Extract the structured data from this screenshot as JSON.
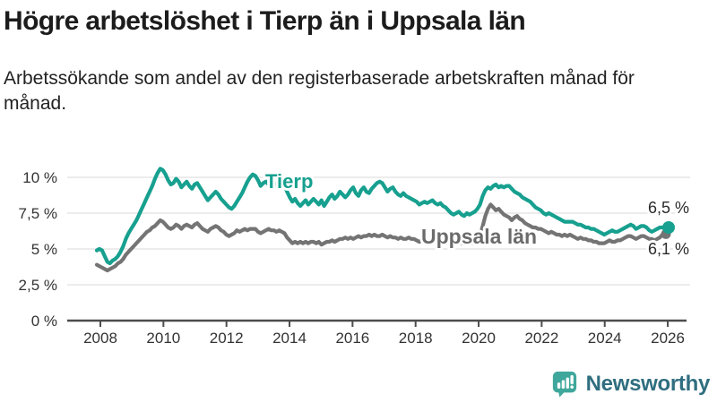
{
  "header": {
    "title": "Högre arbetslöshet i Tierp än i Uppsala län",
    "subtitle": "Arbetssökande som andel av den registerbaserade arbetskraften månad för månad."
  },
  "chart_data": {
    "type": "line",
    "title": "Högre arbetslöshet i Tierp än i Uppsala län",
    "xlabel": "",
    "ylabel": "",
    "x_start_year": 2008,
    "x_interval": "monthly",
    "x_tick_labels": [
      "2008",
      "2010",
      "2012",
      "2014",
      "2016",
      "2018",
      "2020",
      "2022",
      "2024",
      "2026"
    ],
    "y_ticks": [
      0,
      2.5,
      5,
      7.5,
      10
    ],
    "y_tick_labels": [
      "0 %",
      "2,5 %",
      "5 %",
      "7,5 %",
      "10 %"
    ],
    "ylim": [
      0,
      11.3
    ],
    "grid": true,
    "legend_position": "inline-labels",
    "series": [
      {
        "name": "Tierp",
        "color": "#17a08f",
        "end_label": "6,5 %",
        "end_value": 6.5,
        "values": [
          4.9,
          5.0,
          4.9,
          4.5,
          4.1,
          4.0,
          4.2,
          4.3,
          4.5,
          4.8,
          5.2,
          5.7,
          6.1,
          6.4,
          6.7,
          7.0,
          7.4,
          7.8,
          8.2,
          8.6,
          9.0,
          9.4,
          9.9,
          10.3,
          10.6,
          10.5,
          10.2,
          9.8,
          9.5,
          9.6,
          9.9,
          9.7,
          9.3,
          9.5,
          9.7,
          9.4,
          9.2,
          9.5,
          9.6,
          9.3,
          9.0,
          8.7,
          8.4,
          8.6,
          8.8,
          9.0,
          8.8,
          8.5,
          8.3,
          8.1,
          7.9,
          7.8,
          8.0,
          8.3,
          8.6,
          8.9,
          9.3,
          9.7,
          10.0,
          10.2,
          10.1,
          9.8,
          9.4,
          9.6,
          9.7,
          9.5,
          9.3,
          9.6,
          9.5,
          9.7,
          9.6,
          9.4,
          9.0,
          8.6,
          8.3,
          8.5,
          8.2,
          8.0,
          8.2,
          8.4,
          8.1,
          8.3,
          8.5,
          8.3,
          8.1,
          8.4,
          8.0,
          8.3,
          8.6,
          8.8,
          8.5,
          8.7,
          9.0,
          8.8,
          8.6,
          8.8,
          9.1,
          9.3,
          8.9,
          8.7,
          9.1,
          9.3,
          9.0,
          8.9,
          9.2,
          9.4,
          9.6,
          9.7,
          9.6,
          9.3,
          9.0,
          9.2,
          9.3,
          9.0,
          8.8,
          8.7,
          8.9,
          8.7,
          8.6,
          8.5,
          8.4,
          8.3,
          8.1,
          8.2,
          8.3,
          8.2,
          8.3,
          8.4,
          8.2,
          8.1,
          8.2,
          8.0,
          7.9,
          7.7,
          7.5,
          7.4,
          7.5,
          7.6,
          7.4,
          7.3,
          7.5,
          7.4,
          7.5,
          7.6,
          7.8,
          8.1,
          8.7,
          9.1,
          9.3,
          9.2,
          9.4,
          9.5,
          9.3,
          9.4,
          9.3,
          9.4,
          9.4,
          9.2,
          9.0,
          8.9,
          8.8,
          8.6,
          8.5,
          8.4,
          8.3,
          8.1,
          7.9,
          7.8,
          7.7,
          7.5,
          7.4,
          7.5,
          7.4,
          7.3,
          7.2,
          7.1,
          7.0,
          6.9,
          6.9,
          6.9,
          6.9,
          6.8,
          6.7,
          6.7,
          6.6,
          6.5,
          6.5,
          6.4,
          6.4,
          6.3,
          6.2,
          6.1,
          6.0,
          6.1,
          6.2,
          6.3,
          6.2,
          6.2,
          6.3,
          6.4,
          6.5,
          6.6,
          6.7,
          6.6,
          6.4,
          6.5,
          6.6,
          6.6,
          6.5,
          6.3,
          6.2,
          6.3,
          6.4,
          6.5,
          6.5,
          6.4,
          6.5
        ]
      },
      {
        "name": "Uppsala län",
        "color": "#747474",
        "end_label": "6,1 %",
        "end_value": 6.1,
        "values": [
          3.9,
          3.8,
          3.7,
          3.6,
          3.5,
          3.6,
          3.7,
          3.8,
          4.0,
          4.1,
          4.3,
          4.6,
          4.8,
          5.0,
          5.2,
          5.4,
          5.6,
          5.8,
          6.0,
          6.2,
          6.3,
          6.5,
          6.6,
          6.8,
          7.0,
          6.9,
          6.7,
          6.5,
          6.4,
          6.5,
          6.7,
          6.6,
          6.4,
          6.6,
          6.7,
          6.6,
          6.5,
          6.7,
          6.8,
          6.6,
          6.4,
          6.3,
          6.2,
          6.4,
          6.5,
          6.6,
          6.5,
          6.3,
          6.2,
          6.0,
          5.9,
          6.0,
          6.1,
          6.3,
          6.2,
          6.3,
          6.4,
          6.3,
          6.4,
          6.4,
          6.4,
          6.2,
          6.1,
          6.2,
          6.3,
          6.4,
          6.3,
          6.3,
          6.2,
          6.3,
          6.2,
          6.1,
          5.8,
          5.6,
          5.4,
          5.5,
          5.4,
          5.5,
          5.4,
          5.5,
          5.4,
          5.5,
          5.5,
          5.4,
          5.5,
          5.3,
          5.4,
          5.5,
          5.5,
          5.6,
          5.5,
          5.6,
          5.7,
          5.7,
          5.8,
          5.7,
          5.8,
          5.7,
          5.8,
          5.9,
          5.8,
          5.9,
          5.9,
          6.0,
          5.9,
          6.0,
          5.9,
          5.9,
          6.0,
          5.9,
          5.8,
          5.9,
          5.8,
          5.8,
          5.7,
          5.8,
          5.7,
          5.7,
          5.8,
          5.7,
          5.7,
          5.6,
          5.5,
          5.6,
          5.5,
          5.6,
          5.5,
          5.6,
          5.5,
          5.6,
          5.6,
          5.5,
          5.6,
          5.5,
          5.4,
          5.5,
          5.4,
          5.5,
          5.4,
          5.4,
          5.5,
          5.4,
          5.4,
          5.5,
          5.6,
          5.9,
          6.6,
          7.3,
          7.8,
          8.1,
          7.9,
          7.7,
          7.8,
          7.6,
          7.4,
          7.3,
          7.2,
          7.0,
          7.2,
          7.3,
          7.1,
          7.0,
          6.8,
          6.7,
          6.6,
          6.5,
          6.5,
          6.4,
          6.4,
          6.3,
          6.2,
          6.1,
          6.2,
          6.1,
          6.0,
          6.0,
          5.9,
          6.0,
          5.9,
          6.0,
          5.9,
          5.8,
          5.7,
          5.8,
          5.7,
          5.7,
          5.6,
          5.6,
          5.5,
          5.5,
          5.4,
          5.4,
          5.4,
          5.5,
          5.6,
          5.5,
          5.5,
          5.6,
          5.6,
          5.7,
          5.8,
          5.9,
          5.9,
          5.8,
          5.7,
          5.8,
          5.9,
          5.9,
          5.8,
          5.7,
          5.7,
          5.6,
          5.7,
          5.8,
          6.0,
          6.1,
          6.1
        ]
      }
    ],
    "colors": {
      "grid": "#e0e0e0",
      "axis": "#4d4d4d",
      "tick_text": "#333333",
      "end_label_text": "#2b2b2b"
    }
  },
  "logo": {
    "name": "Newsworthy",
    "icon": "newsworthy-chart-bubble-icon",
    "icon_color": "#3fa79b",
    "text_color": "#2f6e80"
  }
}
